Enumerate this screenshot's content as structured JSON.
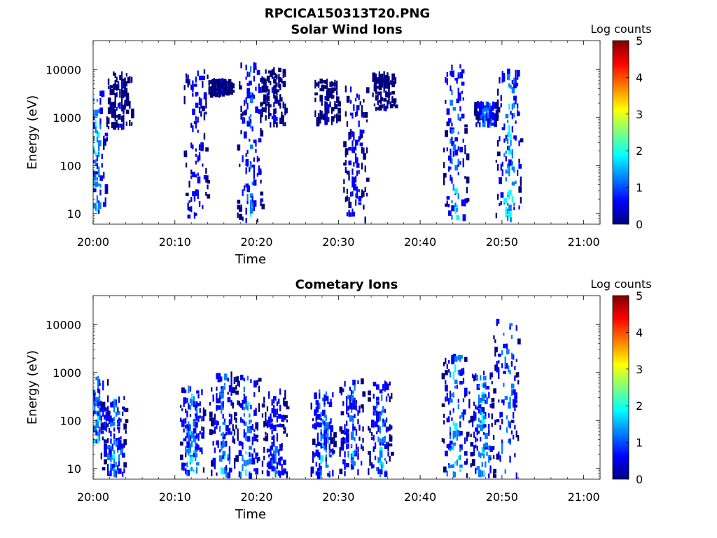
{
  "figure": {
    "title": "RPCICA150313T20.PNG"
  },
  "colorscale": [
    "#00007f",
    "#0000ff",
    "#007fff",
    "#00ffff",
    "#7fff7f",
    "#ffff00",
    "#ff7f00",
    "#ff0000",
    "#7f0000"
  ],
  "chart_data": [
    {
      "type": "heatmap",
      "title": "Solar Wind Ions",
      "xlabel": "Time",
      "ylabel": "Energy (eV)",
      "colorbar_label": "Log counts",
      "xlim": [
        "20:00",
        "21:02"
      ],
      "ylim": [
        6,
        40000
      ],
      "yscale": "log",
      "clim": [
        0,
        5
      ],
      "x_ticks": [
        "20:00",
        "20:10",
        "20:20",
        "20:30",
        "20:40",
        "20:50",
        "21:00"
      ],
      "y_ticks": [
        "10",
        "100",
        "1000",
        "10000"
      ],
      "colorbar_ticks": [
        "0",
        "1",
        "2",
        "3",
        "4",
        "5"
      ],
      "bursts": [
        {
          "t": 0.2,
          "emin": 10,
          "emax": 4000,
          "peak": 2.5
        },
        {
          "t": 3.2,
          "emin": 600,
          "emax": 9000,
          "peak": 0.5
        },
        {
          "t": 12.5,
          "emin": 7,
          "emax": 10000,
          "peak": 1.2
        },
        {
          "t": 15.5,
          "emin": 3000,
          "emax": 6000,
          "peak": 0.4
        },
        {
          "t": 19.2,
          "emin": 7,
          "emax": 13000,
          "peak": 1.6
        },
        {
          "t": 22.0,
          "emin": 700,
          "emax": 10000,
          "peak": 0.5
        },
        {
          "t": 28.5,
          "emin": 700,
          "emax": 6000,
          "peak": 0.4
        },
        {
          "t": 32.0,
          "emin": 7,
          "emax": 4000,
          "peak": 1.0
        },
        {
          "t": 35.5,
          "emin": 1500,
          "emax": 8000,
          "peak": 0.4
        },
        {
          "t": 44.2,
          "emin": 8,
          "emax": 12000,
          "peak": 2.0
        },
        {
          "t": 48.0,
          "emin": 700,
          "emax": 2000,
          "peak": 1.6
        },
        {
          "t": 50.8,
          "emin": 7,
          "emax": 10000,
          "peak": 2.6
        }
      ]
    },
    {
      "type": "heatmap",
      "title": "Cometary Ions",
      "xlabel": "Time",
      "ylabel": "Energy (eV)",
      "colorbar_label": "Log counts",
      "xlim": [
        "20:00",
        "21:02"
      ],
      "ylim": [
        6,
        40000
      ],
      "yscale": "log",
      "clim": [
        0,
        5
      ],
      "x_ticks": [
        "20:00",
        "20:10",
        "20:20",
        "20:30",
        "20:40",
        "20:50",
        "21:00"
      ],
      "y_ticks": [
        "10",
        "100",
        "1000",
        "10000"
      ],
      "colorbar_ticks": [
        "0",
        "1",
        "2",
        "3",
        "4",
        "5"
      ],
      "bursts": [
        {
          "t": 0.3,
          "emin": 35,
          "emax": 900,
          "peak": 1.9
        },
        {
          "t": 2.5,
          "emin": 7,
          "emax": 300,
          "peak": 2.2
        },
        {
          "t": 12.0,
          "emin": 7,
          "emax": 500,
          "peak": 2.3
        },
        {
          "t": 15.8,
          "emin": 7,
          "emax": 900,
          "peak": 2.0
        },
        {
          "t": 18.8,
          "emin": 7,
          "emax": 800,
          "peak": 2.1
        },
        {
          "t": 22.2,
          "emin": 7,
          "emax": 400,
          "peak": 1.5
        },
        {
          "t": 28.0,
          "emin": 7,
          "emax": 400,
          "peak": 2.1
        },
        {
          "t": 31.5,
          "emin": 7,
          "emax": 700,
          "peak": 1.9
        },
        {
          "t": 35.0,
          "emin": 7,
          "emax": 600,
          "peak": 2.0
        },
        {
          "t": 44.2,
          "emin": 7,
          "emax": 2400,
          "peak": 2.6
        },
        {
          "t": 47.5,
          "emin": 7,
          "emax": 1000,
          "peak": 2.3
        },
        {
          "t": 50.5,
          "emin": 7,
          "emax": 12000,
          "peak": 2.2
        }
      ]
    }
  ]
}
